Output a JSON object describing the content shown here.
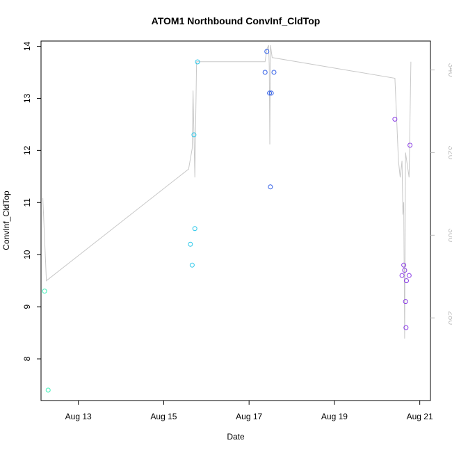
{
  "chart_data": {
    "type": "scatter",
    "title": "ATOM1 Northbound ConvInf_CldTop",
    "xlabel": "Date",
    "ylabel": "ConvInf_CldTop",
    "x_axis": {
      "range": [
        "2023-08-12 03:00",
        "2023-08-21 06:00"
      ],
      "ticks": [
        {
          "date": "2023-08-13",
          "label": "Aug 13"
        },
        {
          "date": "2023-08-15",
          "label": "Aug 15"
        },
        {
          "date": "2023-08-17",
          "label": "Aug 17"
        },
        {
          "date": "2023-08-19",
          "label": "Aug 19"
        },
        {
          "date": "2023-08-21",
          "label": "Aug 21"
        }
      ]
    },
    "y_axis_left": {
      "range": [
        7.2,
        14.1
      ],
      "ticks": [
        8,
        9,
        10,
        11,
        12,
        13,
        14
      ],
      "tick_labels": [
        "8",
        "9",
        "10",
        "11",
        "12",
        "13",
        "14"
      ]
    },
    "y_axis_right": {
      "range": [
        260,
        347
      ],
      "ticks": [
        280,
        300,
        320,
        340
      ],
      "tick_labels": [
        "280",
        "300",
        "320",
        "340"
      ],
      "color": "#bebebe"
    },
    "points": [
      {
        "x": "2023-08-12 05:00",
        "y": 9.3,
        "color": "#3ef0b8"
      },
      {
        "x": "2023-08-12 07:00",
        "y": 7.4,
        "color": "#3ef0b8"
      },
      {
        "x": "2023-08-15 15:00",
        "y": 10.2,
        "color": "#2dc8ea"
      },
      {
        "x": "2023-08-15 16:00",
        "y": 9.8,
        "color": "#2dc8ea"
      },
      {
        "x": "2023-08-15 17:00",
        "y": 12.3,
        "color": "#2dc8ea"
      },
      {
        "x": "2023-08-15 17:30",
        "y": 10.5,
        "color": "#2dc8ea"
      },
      {
        "x": "2023-08-15 19:00",
        "y": 13.7,
        "color": "#2dc8ea"
      },
      {
        "x": "2023-08-17 09:00",
        "y": 13.5,
        "color": "#2f5de6"
      },
      {
        "x": "2023-08-17 10:00",
        "y": 13.9,
        "color": "#2f5de6"
      },
      {
        "x": "2023-08-17 11:30",
        "y": 13.1,
        "color": "#2f5de6"
      },
      {
        "x": "2023-08-17 12:00",
        "y": 11.3,
        "color": "#2f5de6"
      },
      {
        "x": "2023-08-17 12:30",
        "y": 13.1,
        "color": "#2f5de6"
      },
      {
        "x": "2023-08-17 14:00",
        "y": 13.5,
        "color": "#2f5de6"
      },
      {
        "x": "2023-08-20 10:00",
        "y": 12.6,
        "color": "#8a3ce6"
      },
      {
        "x": "2023-08-20 14:00",
        "y": 9.6,
        "color": "#8a3ce6"
      },
      {
        "x": "2023-08-20 15:00",
        "y": 9.8,
        "color": "#8a3ce6"
      },
      {
        "x": "2023-08-20 15:30",
        "y": 9.7,
        "color": "#8a3ce6"
      },
      {
        "x": "2023-08-20 16:00",
        "y": 9.1,
        "color": "#8a3ce6"
      },
      {
        "x": "2023-08-20 16:15",
        "y": 8.6,
        "color": "#8a3ce6"
      },
      {
        "x": "2023-08-20 16:30",
        "y": 9.5,
        "color": "#8a3ce6"
      },
      {
        "x": "2023-08-20 18:00",
        "y": 9.6,
        "color": "#8a3ce6"
      },
      {
        "x": "2023-08-20 18:30",
        "y": 12.1,
        "color": "#8a3ce6"
      }
    ],
    "secondary_line": {
      "color": "#c8c8c8",
      "axis": "right",
      "points": [
        {
          "x": "2023-08-12 04:00",
          "y": 309
        },
        {
          "x": "2023-08-12 06:00",
          "y": 289
        },
        {
          "x": "2023-08-15 14:00",
          "y": 316
        },
        {
          "x": "2023-08-15 16:00",
          "y": 321
        },
        {
          "x": "2023-08-15 16:30",
          "y": 335
        },
        {
          "x": "2023-08-15 17:30",
          "y": 314
        },
        {
          "x": "2023-08-15 18:30",
          "y": 342
        },
        {
          "x": "2023-08-17 09:00",
          "y": 342
        },
        {
          "x": "2023-08-17 10:00",
          "y": 345
        },
        {
          "x": "2023-08-17 11:00",
          "y": 346
        },
        {
          "x": "2023-08-17 11:20",
          "y": 341
        },
        {
          "x": "2023-08-17 11:40",
          "y": 322
        },
        {
          "x": "2023-08-17 12:00",
          "y": 346
        },
        {
          "x": "2023-08-17 13:00",
          "y": 343
        },
        {
          "x": "2023-08-20 10:00",
          "y": 338
        },
        {
          "x": "2023-08-20 12:00",
          "y": 318
        },
        {
          "x": "2023-08-20 13:00",
          "y": 314
        },
        {
          "x": "2023-08-20 14:00",
          "y": 318
        },
        {
          "x": "2023-08-20 14:30",
          "y": 305
        },
        {
          "x": "2023-08-20 15:00",
          "y": 308
        },
        {
          "x": "2023-08-20 15:30",
          "y": 275
        },
        {
          "x": "2023-08-20 16:00",
          "y": 320
        },
        {
          "x": "2023-08-20 18:00",
          "y": 314
        },
        {
          "x": "2023-08-20 19:00",
          "y": 342
        }
      ]
    },
    "grid": false,
    "legend": "none"
  }
}
